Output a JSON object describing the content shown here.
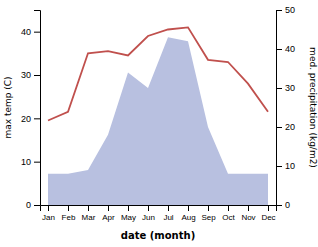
{
  "chart_data": {
    "type": "line",
    "categories": [
      "Jan",
      "Feb",
      "Mar",
      "Apr",
      "May",
      "Jun",
      "Jul",
      "Aug",
      "Sep",
      "Oct",
      "Nov",
      "Dec"
    ],
    "series": [
      {
        "type": "area",
        "color": "#b8c0e0",
        "axis": "y2",
        "values": [
          8,
          8,
          9,
          18,
          34,
          30,
          43,
          42,
          20,
          8,
          8,
          8
        ]
      },
      {
        "type": "line",
        "color": "#c0504d",
        "values": [
          19.5,
          21.5,
          35.0,
          35.5,
          34.5,
          39.0,
          40.5,
          41.0,
          33.5,
          33.0,
          28.0,
          21.5
        ]
      }
    ],
    "xlabel": "date (month)",
    "ylabel": "max temp (C)",
    "y2label": "med. precipitation (kg/m2)",
    "ylim": [
      0,
      45
    ],
    "yticks": [
      0,
      10,
      20,
      30,
      40
    ],
    "y2lim": [
      0,
      50
    ],
    "y2ticks": [
      0,
      10,
      20,
      30,
      40,
      50
    ]
  }
}
